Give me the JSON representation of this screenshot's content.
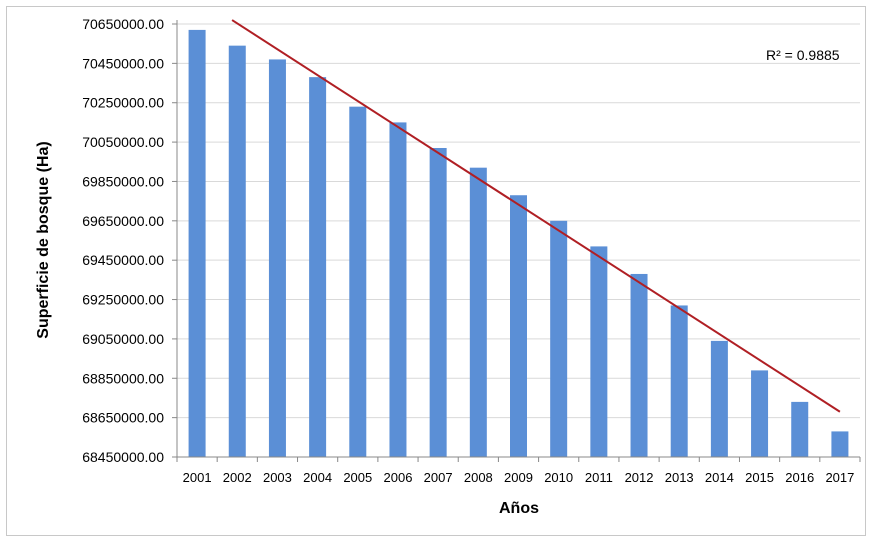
{
  "chart_data": {
    "type": "bar",
    "title": "",
    "xlabel": "Años",
    "ylabel": "Superficie de bosque (Ha)",
    "ylim": [
      68450000,
      70650000
    ],
    "y_ticks": [
      "68450000.00",
      "68650000.00",
      "68850000.00",
      "69050000.00",
      "69250000.00",
      "69450000.00",
      "69650000.00",
      "69850000.00",
      "70050000.00",
      "70250000.00",
      "70450000.00",
      "70650000.00"
    ],
    "y_tick_values": [
      68450000,
      68650000,
      68850000,
      69050000,
      69250000,
      69450000,
      69650000,
      69850000,
      70050000,
      70250000,
      70450000,
      70650000
    ],
    "categories": [
      "2001",
      "2002",
      "2003",
      "2004",
      "2005",
      "2006",
      "2007",
      "2008",
      "2009",
      "2010",
      "2011",
      "2012",
      "2013",
      "2014",
      "2015",
      "2016",
      "2017"
    ],
    "values": [
      70620000,
      70540000,
      70470000,
      70380000,
      70230000,
      70150000,
      70020000,
      69920000,
      69780000,
      69650000,
      69520000,
      69380000,
      69220000,
      69040000,
      68890000,
      68730000,
      68580000
    ],
    "grid": true,
    "bar_color": "#5b8fd6",
    "trendline": {
      "type": "linear",
      "color": "#b01f24",
      "start_value": 70670000,
      "end_value": 68680000,
      "label": "R² = 0.9885"
    }
  }
}
